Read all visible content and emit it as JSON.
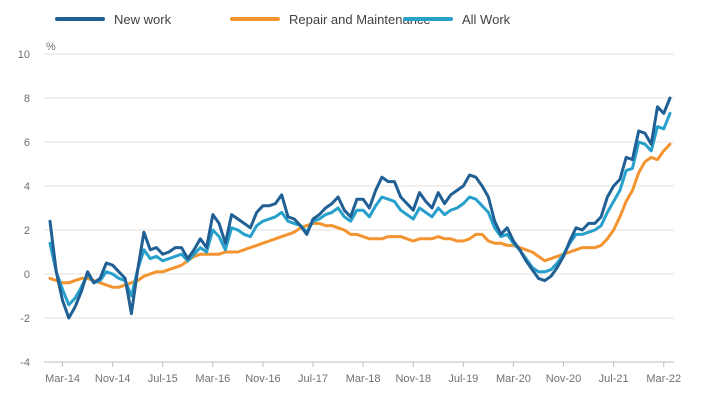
{
  "chart_data": {
    "type": "line",
    "title": "",
    "xlabel": "",
    "ylabel": "%",
    "ylim": [
      -4,
      10
    ],
    "yticks": [
      -4,
      -2,
      0,
      2,
      4,
      6,
      8,
      10
    ],
    "grid": true,
    "legend_position": "top-left",
    "x_start": "Jan-14",
    "x_end": "Mar-22",
    "x_tick_labels": [
      "Mar-14",
      "Nov-14",
      "Jul-15",
      "Mar-16",
      "Nov-16",
      "Jul-17",
      "Mar-18",
      "Nov-18",
      "Jul-19",
      "Mar-20",
      "Nov-20",
      "Jul-21",
      "Mar-22"
    ],
    "series": [
      {
        "name": "New work",
        "color": "#206095",
        "values": [
          2.4,
          0.1,
          -1.2,
          -2.0,
          -1.5,
          -0.8,
          0.1,
          -0.4,
          -0.2,
          0.5,
          0.4,
          0.1,
          -0.2,
          -1.8,
          0.2,
          1.9,
          1.1,
          1.2,
          0.9,
          1.0,
          1.2,
          1.2,
          0.7,
          1.1,
          1.6,
          1.2,
          2.7,
          2.3,
          1.4,
          2.7,
          2.5,
          2.3,
          2.1,
          2.8,
          3.1,
          3.1,
          3.2,
          3.6,
          2.6,
          2.5,
          2.2,
          1.8,
          2.5,
          2.7,
          3.0,
          3.2,
          3.5,
          2.9,
          2.6,
          3.4,
          3.4,
          3.0,
          3.8,
          4.4,
          4.2,
          4.2,
          3.5,
          3.2,
          2.9,
          3.7,
          3.3,
          3.0,
          3.7,
          3.2,
          3.6,
          3.8,
          4.0,
          4.5,
          4.4,
          4.0,
          3.5,
          2.4,
          1.8,
          2.1,
          1.5,
          1.1,
          0.6,
          0.2,
          -0.2,
          -0.3,
          -0.1,
          0.3,
          0.8,
          1.5,
          2.1,
          2.0,
          2.3,
          2.3,
          2.6,
          3.5,
          4.0,
          4.3,
          5.3,
          5.2,
          6.5,
          6.4,
          5.9,
          7.6,
          7.3,
          8.0
        ]
      },
      {
        "name": "Repair and Maintenance",
        "color": "#f39431",
        "values": [
          -0.2,
          -0.3,
          -0.4,
          -0.4,
          -0.3,
          -0.2,
          -0.2,
          -0.3,
          -0.4,
          -0.5,
          -0.6,
          -0.6,
          -0.5,
          -0.4,
          -0.3,
          -0.1,
          0.0,
          0.1,
          0.1,
          0.2,
          0.3,
          0.4,
          0.6,
          0.8,
          0.9,
          0.9,
          0.9,
          0.9,
          1.0,
          1.0,
          1.0,
          1.1,
          1.2,
          1.3,
          1.4,
          1.5,
          1.6,
          1.7,
          1.8,
          1.9,
          2.1,
          2.2,
          2.3,
          2.3,
          2.2,
          2.2,
          2.1,
          2.0,
          1.8,
          1.8,
          1.7,
          1.6,
          1.6,
          1.6,
          1.7,
          1.7,
          1.7,
          1.6,
          1.5,
          1.6,
          1.6,
          1.6,
          1.7,
          1.6,
          1.6,
          1.5,
          1.5,
          1.6,
          1.8,
          1.8,
          1.5,
          1.4,
          1.4,
          1.3,
          1.3,
          1.2,
          1.1,
          1.0,
          0.8,
          0.6,
          0.7,
          0.8,
          0.9,
          1.0,
          1.1,
          1.2,
          1.2,
          1.2,
          1.3,
          1.6,
          2.0,
          2.6,
          3.3,
          3.8,
          4.6,
          5.1,
          5.3,
          5.2,
          5.6,
          5.9
        ]
      },
      {
        "name": "All Work",
        "color": "#27a0cc",
        "values": [
          1.4,
          0.1,
          -0.7,
          -1.4,
          -1.1,
          -0.6,
          0.0,
          -0.4,
          -0.3,
          0.1,
          0.0,
          -0.2,
          -0.3,
          -1.0,
          0.2,
          1.1,
          0.7,
          0.8,
          0.6,
          0.7,
          0.8,
          0.9,
          0.6,
          0.9,
          1.2,
          1.0,
          2.0,
          1.7,
          1.1,
          2.1,
          2.0,
          1.8,
          1.7,
          2.2,
          2.4,
          2.5,
          2.6,
          2.8,
          2.4,
          2.3,
          2.2,
          1.9,
          2.4,
          2.5,
          2.7,
          2.8,
          3.0,
          2.6,
          2.4,
          2.9,
          2.9,
          2.6,
          3.1,
          3.5,
          3.4,
          3.3,
          2.9,
          2.7,
          2.5,
          3.0,
          2.8,
          2.6,
          3.0,
          2.7,
          2.9,
          3.0,
          3.2,
          3.5,
          3.4,
          3.1,
          2.8,
          2.1,
          1.7,
          1.8,
          1.4,
          1.1,
          0.7,
          0.3,
          0.1,
          0.1,
          0.2,
          0.5,
          0.9,
          1.4,
          1.8,
          1.8,
          1.9,
          2.0,
          2.2,
          2.8,
          3.3,
          3.8,
          4.7,
          4.8,
          6.0,
          5.9,
          5.6,
          6.7,
          6.6,
          7.3
        ]
      }
    ]
  }
}
